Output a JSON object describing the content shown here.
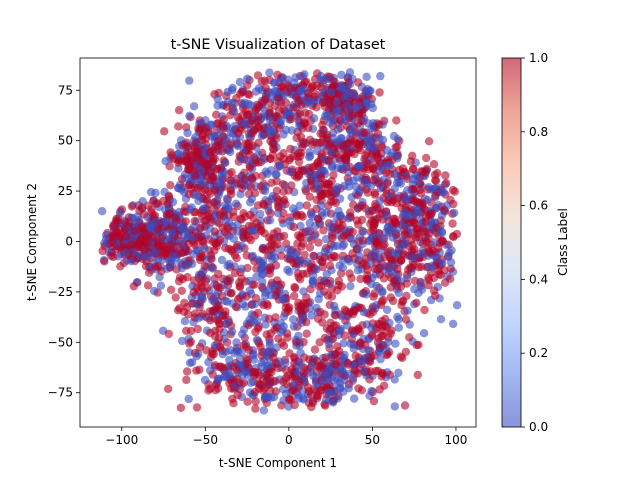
{
  "chart_data": {
    "type": "scatter",
    "title": "t-SNE Visualization of Dataset",
    "xlabel": "t-SNE Component 1",
    "ylabel": "t-SNE Component 2",
    "xlim": [
      -125,
      112
    ],
    "ylim": [
      -92,
      91
    ],
    "xticks": [
      -100,
      -50,
      0,
      50,
      100
    ],
    "yticks": [
      -75,
      -50,
      -25,
      0,
      25,
      50,
      75
    ],
    "grid": false,
    "legend": "none",
    "colormap": "coolwarm",
    "marker_alpha": 0.6,
    "point_color_low": "#3b4cc0",
    "point_color_high": "#b40426",
    "colorbar": {
      "label": "Class Label",
      "range": [
        0.0,
        1.0
      ],
      "ticks": [
        0.0,
        0.2,
        0.4,
        0.6,
        0.8,
        1.0
      ],
      "tick_labels": [
        "0.0",
        "0.2",
        "0.4",
        "0.6",
        "0.8",
        "1.0"
      ],
      "colors": [
        "#3b4cc0",
        "#6788ee",
        "#9abbff",
        "#c9d7f0",
        "#edd1c2",
        "#f7a889",
        "#e26952",
        "#b40426"
      ]
    },
    "clusters": [
      {
        "cx": -95,
        "cy": 0,
        "sx": 9,
        "sy": 6
      },
      {
        "cx": -65,
        "cy": 0,
        "sx": 14,
        "sy": 12
      },
      {
        "cx": -45,
        "cy": -35,
        "sx": 12,
        "sy": 15
      },
      {
        "cx": -40,
        "cy": 20,
        "sx": 12,
        "sy": 15
      },
      {
        "cx": -30,
        "cy": 55,
        "sx": 14,
        "sy": 12
      },
      {
        "cx": -25,
        "cy": -65,
        "sx": 14,
        "sy": 10
      },
      {
        "cx": -10,
        "cy": 0,
        "sx": 18,
        "sy": 18
      },
      {
        "cx": 0,
        "cy": 70,
        "sx": 14,
        "sy": 8
      },
      {
        "cx": 15,
        "cy": 40,
        "sx": 16,
        "sy": 14
      },
      {
        "cx": 5,
        "cy": -35,
        "sx": 16,
        "sy": 15
      },
      {
        "cx": 15,
        "cy": -70,
        "sx": 14,
        "sy": 8
      },
      {
        "cx": 30,
        "cy": 10,
        "sx": 16,
        "sy": 16
      },
      {
        "cx": 45,
        "cy": 45,
        "sx": 12,
        "sy": 10
      },
      {
        "cx": 45,
        "cy": -50,
        "sx": 12,
        "sy": 14
      },
      {
        "cx": 60,
        "cy": -15,
        "sx": 12,
        "sy": 15
      },
      {
        "cx": 70,
        "cy": 20,
        "sx": 12,
        "sy": 12
      },
      {
        "cx": 85,
        "cy": 0,
        "sx": 10,
        "sy": 14
      },
      {
        "cx": -80,
        "cy": 5,
        "sx": 10,
        "sy": 8
      },
      {
        "cx": 35,
        "cy": 70,
        "sx": 8,
        "sy": 6
      },
      {
        "cx": -55,
        "cy": 40,
        "sx": 8,
        "sy": 8
      }
    ]
  }
}
